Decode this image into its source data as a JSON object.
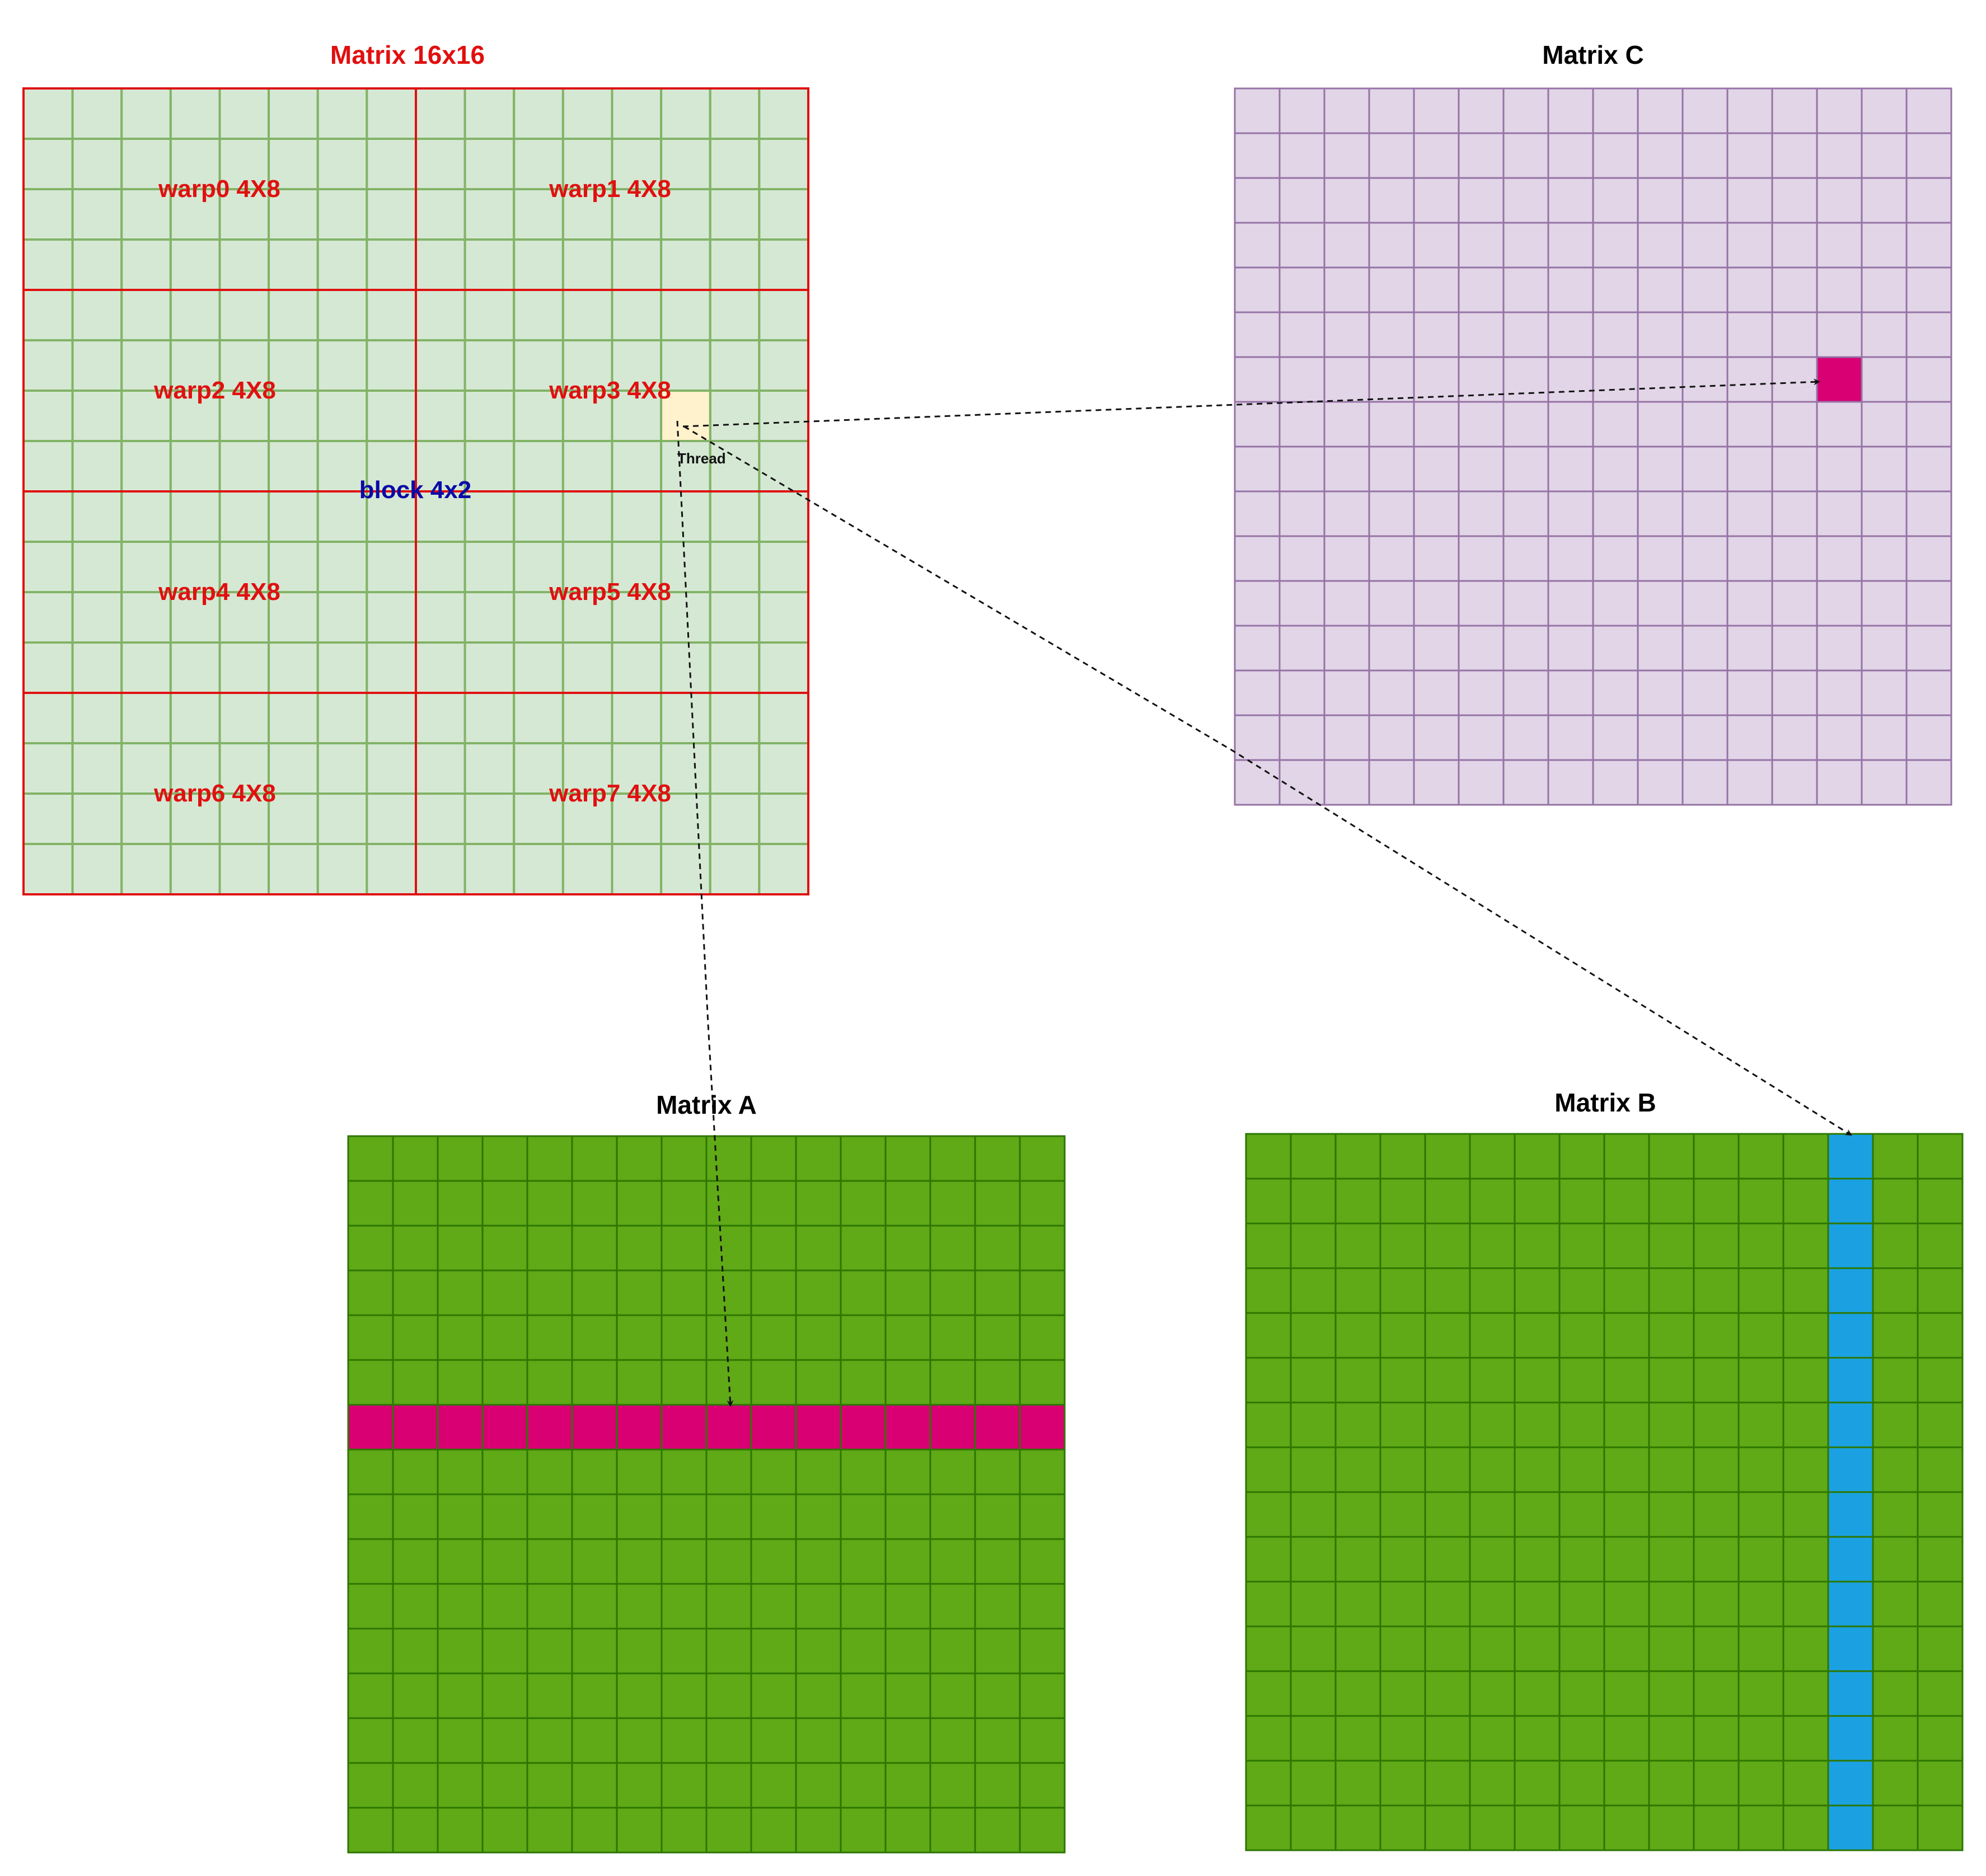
{
  "colors": {
    "red_label": "#e01010",
    "block_label": "#0a0aa8",
    "warp_grid_fill": "#d5e8d4",
    "warp_grid_line": "#82b366",
    "warp_boundary": "#e01010",
    "thread_fill": "#fff2cc",
    "matrix_c_fill": "#e1d5e7",
    "matrix_c_line": "#9673a6",
    "matrix_ab_fill": "#60a917",
    "matrix_ab_line": "#2d7600",
    "highlight_magenta": "#d80073",
    "highlight_blue": "#1ba1e2",
    "arrow": "#111111"
  },
  "thread_matrix": {
    "title": "Matrix 16x16",
    "rows": 16,
    "cols": 16,
    "block_label": "block 4x2",
    "thread_label": "Thread",
    "thread_cell": {
      "row": 6,
      "col": 13
    },
    "warps": [
      {
        "label": "warp0 4X8"
      },
      {
        "label": "warp1 4X8"
      },
      {
        "label": "warp2 4X8"
      },
      {
        "label": "warp3 4X8"
      },
      {
        "label": "warp4 4X8"
      },
      {
        "label": "warp5 4X8"
      },
      {
        "label": "warp6 4X8"
      },
      {
        "label": "warp7 4X8"
      }
    ]
  },
  "matrix_c": {
    "title": "Matrix C",
    "rows": 16,
    "cols": 16,
    "highlight_cell": {
      "row": 6,
      "col": 13
    }
  },
  "matrix_a": {
    "title": "Matrix A",
    "rows": 16,
    "cols": 16,
    "highlight_row": 6
  },
  "matrix_b": {
    "title": "Matrix B",
    "rows": 16,
    "cols": 16,
    "highlight_col": 13
  }
}
